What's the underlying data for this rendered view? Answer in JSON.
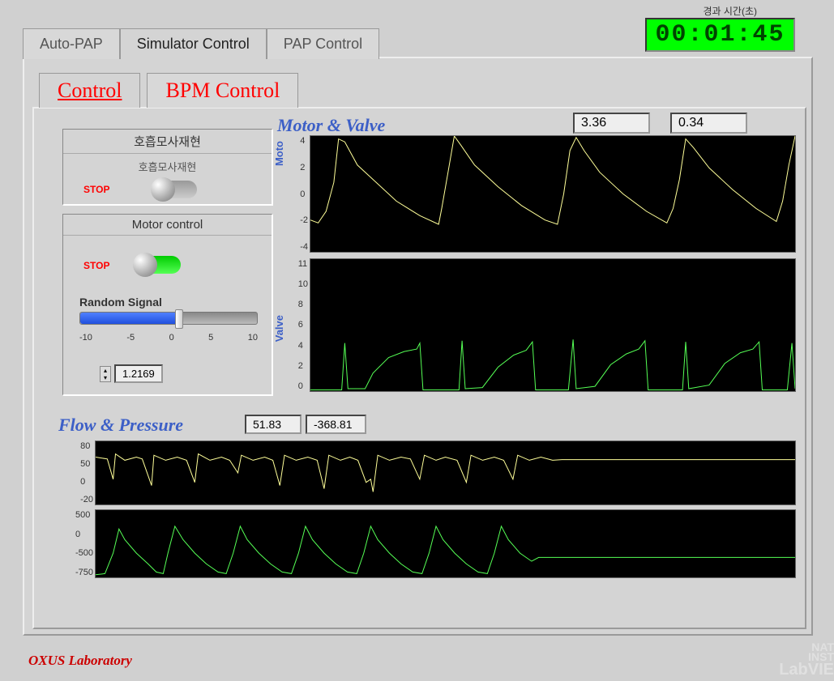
{
  "timer": {
    "label": "경과 시간(초)",
    "value": "00:01:45",
    "bg": "#00ff00",
    "fg": "#004400"
  },
  "main_tabs": {
    "items": [
      "Auto-PAP",
      "Simulator Control",
      "PAP Control"
    ],
    "active": 1
  },
  "sub_tabs": {
    "items": [
      "Control",
      "BPM Control"
    ],
    "active": 0
  },
  "motor_valve": {
    "title": "Motor & Valve",
    "val1": "3.36",
    "val2": "0.34",
    "motor_axis_label": "Moto",
    "valve_axis_label": "Valve",
    "motor_chart": {
      "ylim": [
        -4,
        4
      ],
      "yticks": [
        "4",
        "2",
        "0",
        "-2",
        "-4"
      ],
      "color": "#ffff99",
      "points": [
        0,
        -1.8,
        5,
        -2.0,
        10,
        -1.2,
        15,
        0.8,
        18,
        3.8,
        22,
        3.6,
        30,
        2.0,
        40,
        1.0,
        55,
        -0.5,
        70,
        -1.5,
        82,
        -2.1,
        84,
        -1.0,
        88,
        1.5,
        92,
        4.0,
        96,
        3.4,
        105,
        2.0,
        120,
        0.5,
        135,
        -0.8,
        150,
        -1.8,
        158,
        -2.1,
        162,
        0.0,
        166,
        3.0,
        170,
        3.9,
        175,
        3.0,
        185,
        1.5,
        200,
        0.0,
        215,
        -1.2,
        228,
        -2.0,
        232,
        -1.0,
        236,
        1.0,
        240,
        3.8,
        245,
        3.2,
        255,
        1.8,
        270,
        0.3,
        285,
        -1.0,
        298,
        -1.9,
        302,
        -0.5,
        306,
        2.0,
        310,
        4.0
      ]
    },
    "valve_chart": {
      "ylim": [
        0,
        11
      ],
      "yticks": [
        "11",
        "10",
        "8",
        "6",
        "4",
        "2",
        "0"
      ],
      "color": "#55ff55",
      "points": [
        0,
        0.1,
        20,
        0.1,
        22,
        4.0,
        24,
        0.2,
        35,
        0.2,
        40,
        1.5,
        50,
        2.8,
        60,
        3.3,
        68,
        3.5,
        70,
        4.0,
        72,
        0.1,
        95,
        0.1,
        97,
        4.2,
        99,
        0.2,
        110,
        0.3,
        120,
        2.0,
        130,
        3.0,
        138,
        3.4,
        142,
        4.1,
        144,
        0.1,
        165,
        0.1,
        168,
        4.3,
        170,
        0.2,
        182,
        0.4,
        192,
        2.2,
        202,
        3.1,
        210,
        3.5,
        214,
        4.2,
        216,
        0.1,
        238,
        0.1,
        240,
        4.1,
        242,
        0.2,
        255,
        0.5,
        265,
        2.3,
        275,
        3.2,
        283,
        3.5,
        287,
        4.1,
        289,
        0.1,
        305,
        0.1,
        308,
        4.0,
        310,
        0.2
      ]
    }
  },
  "control_boxes": {
    "breath": {
      "header": "호흡모사재현",
      "sub_label": "호흡모사재현",
      "stop": "STOP",
      "on": false
    },
    "motor": {
      "header": "Motor control",
      "stop": "STOP",
      "on": true,
      "slider": {
        "label": "Random Signal",
        "min": -10,
        "max": 10,
        "value": 1.2169,
        "ticks": [
          "-10",
          "-5",
          "0",
          "5",
          "10"
        ],
        "display": "1.2169"
      }
    }
  },
  "flow_pressure": {
    "title": "Flow & Pressure",
    "val1": "51.83",
    "val2": "-368.81",
    "flow_chart": {
      "ylim": [
        -20,
        80
      ],
      "yticks": [
        "80",
        "50",
        "0",
        "-20"
      ],
      "color": "#ffff99",
      "points": [
        0,
        55,
        10,
        52,
        15,
        20,
        17,
        60,
        25,
        50,
        35,
        55,
        40,
        52,
        48,
        10,
        50,
        58,
        60,
        50,
        70,
        55,
        78,
        50,
        85,
        15,
        88,
        60,
        98,
        50,
        108,
        55,
        115,
        50,
        122,
        30,
        125,
        58,
        135,
        50,
        145,
        55,
        152,
        50,
        158,
        10,
        162,
        58,
        172,
        50,
        182,
        55,
        190,
        50,
        196,
        5,
        200,
        58,
        210,
        50,
        218,
        55,
        225,
        50,
        232,
        15,
        236,
        20,
        238,
        0,
        242,
        58,
        252,
        50,
        262,
        55,
        270,
        52,
        278,
        20,
        282,
        58,
        292,
        50,
        300,
        55,
        310,
        50,
        318,
        15,
        322,
        58,
        332,
        50,
        342,
        55,
        350,
        50,
        358,
        20,
        362,
        58,
        372,
        50,
        382,
        55,
        392,
        50,
        400,
        51,
        500,
        51,
        600,
        51
      ]
    },
    "pressure_chart": {
      "ylim": [
        -750,
        500
      ],
      "yticks": [
        "500",
        "0",
        "-500",
        "-750"
      ],
      "color": "#55ff55",
      "points": [
        0,
        -700,
        8,
        -680,
        15,
        -300,
        20,
        150,
        25,
        -50,
        35,
        -300,
        45,
        -500,
        52,
        -650,
        58,
        -680,
        62,
        -300,
        68,
        200,
        75,
        -50,
        85,
        -300,
        95,
        -500,
        105,
        -650,
        112,
        -680,
        118,
        -300,
        124,
        200,
        130,
        -50,
        140,
        -300,
        150,
        -500,
        160,
        -650,
        168,
        -680,
        174,
        -300,
        180,
        200,
        186,
        -50,
        196,
        -300,
        206,
        -500,
        216,
        -650,
        224,
        -680,
        230,
        -300,
        236,
        200,
        242,
        -50,
        252,
        -300,
        262,
        -500,
        272,
        -650,
        280,
        -680,
        286,
        -300,
        292,
        200,
        298,
        -50,
        308,
        -300,
        318,
        -500,
        328,
        -650,
        336,
        -680,
        342,
        -300,
        348,
        200,
        354,
        -50,
        364,
        -300,
        374,
        -450,
        380,
        -380,
        600,
        -380
      ]
    }
  },
  "footer": "OXUS Laboratory",
  "logo": {
    "line1": "NAT",
    "line2": "INST",
    "line3": "LabVIE"
  }
}
